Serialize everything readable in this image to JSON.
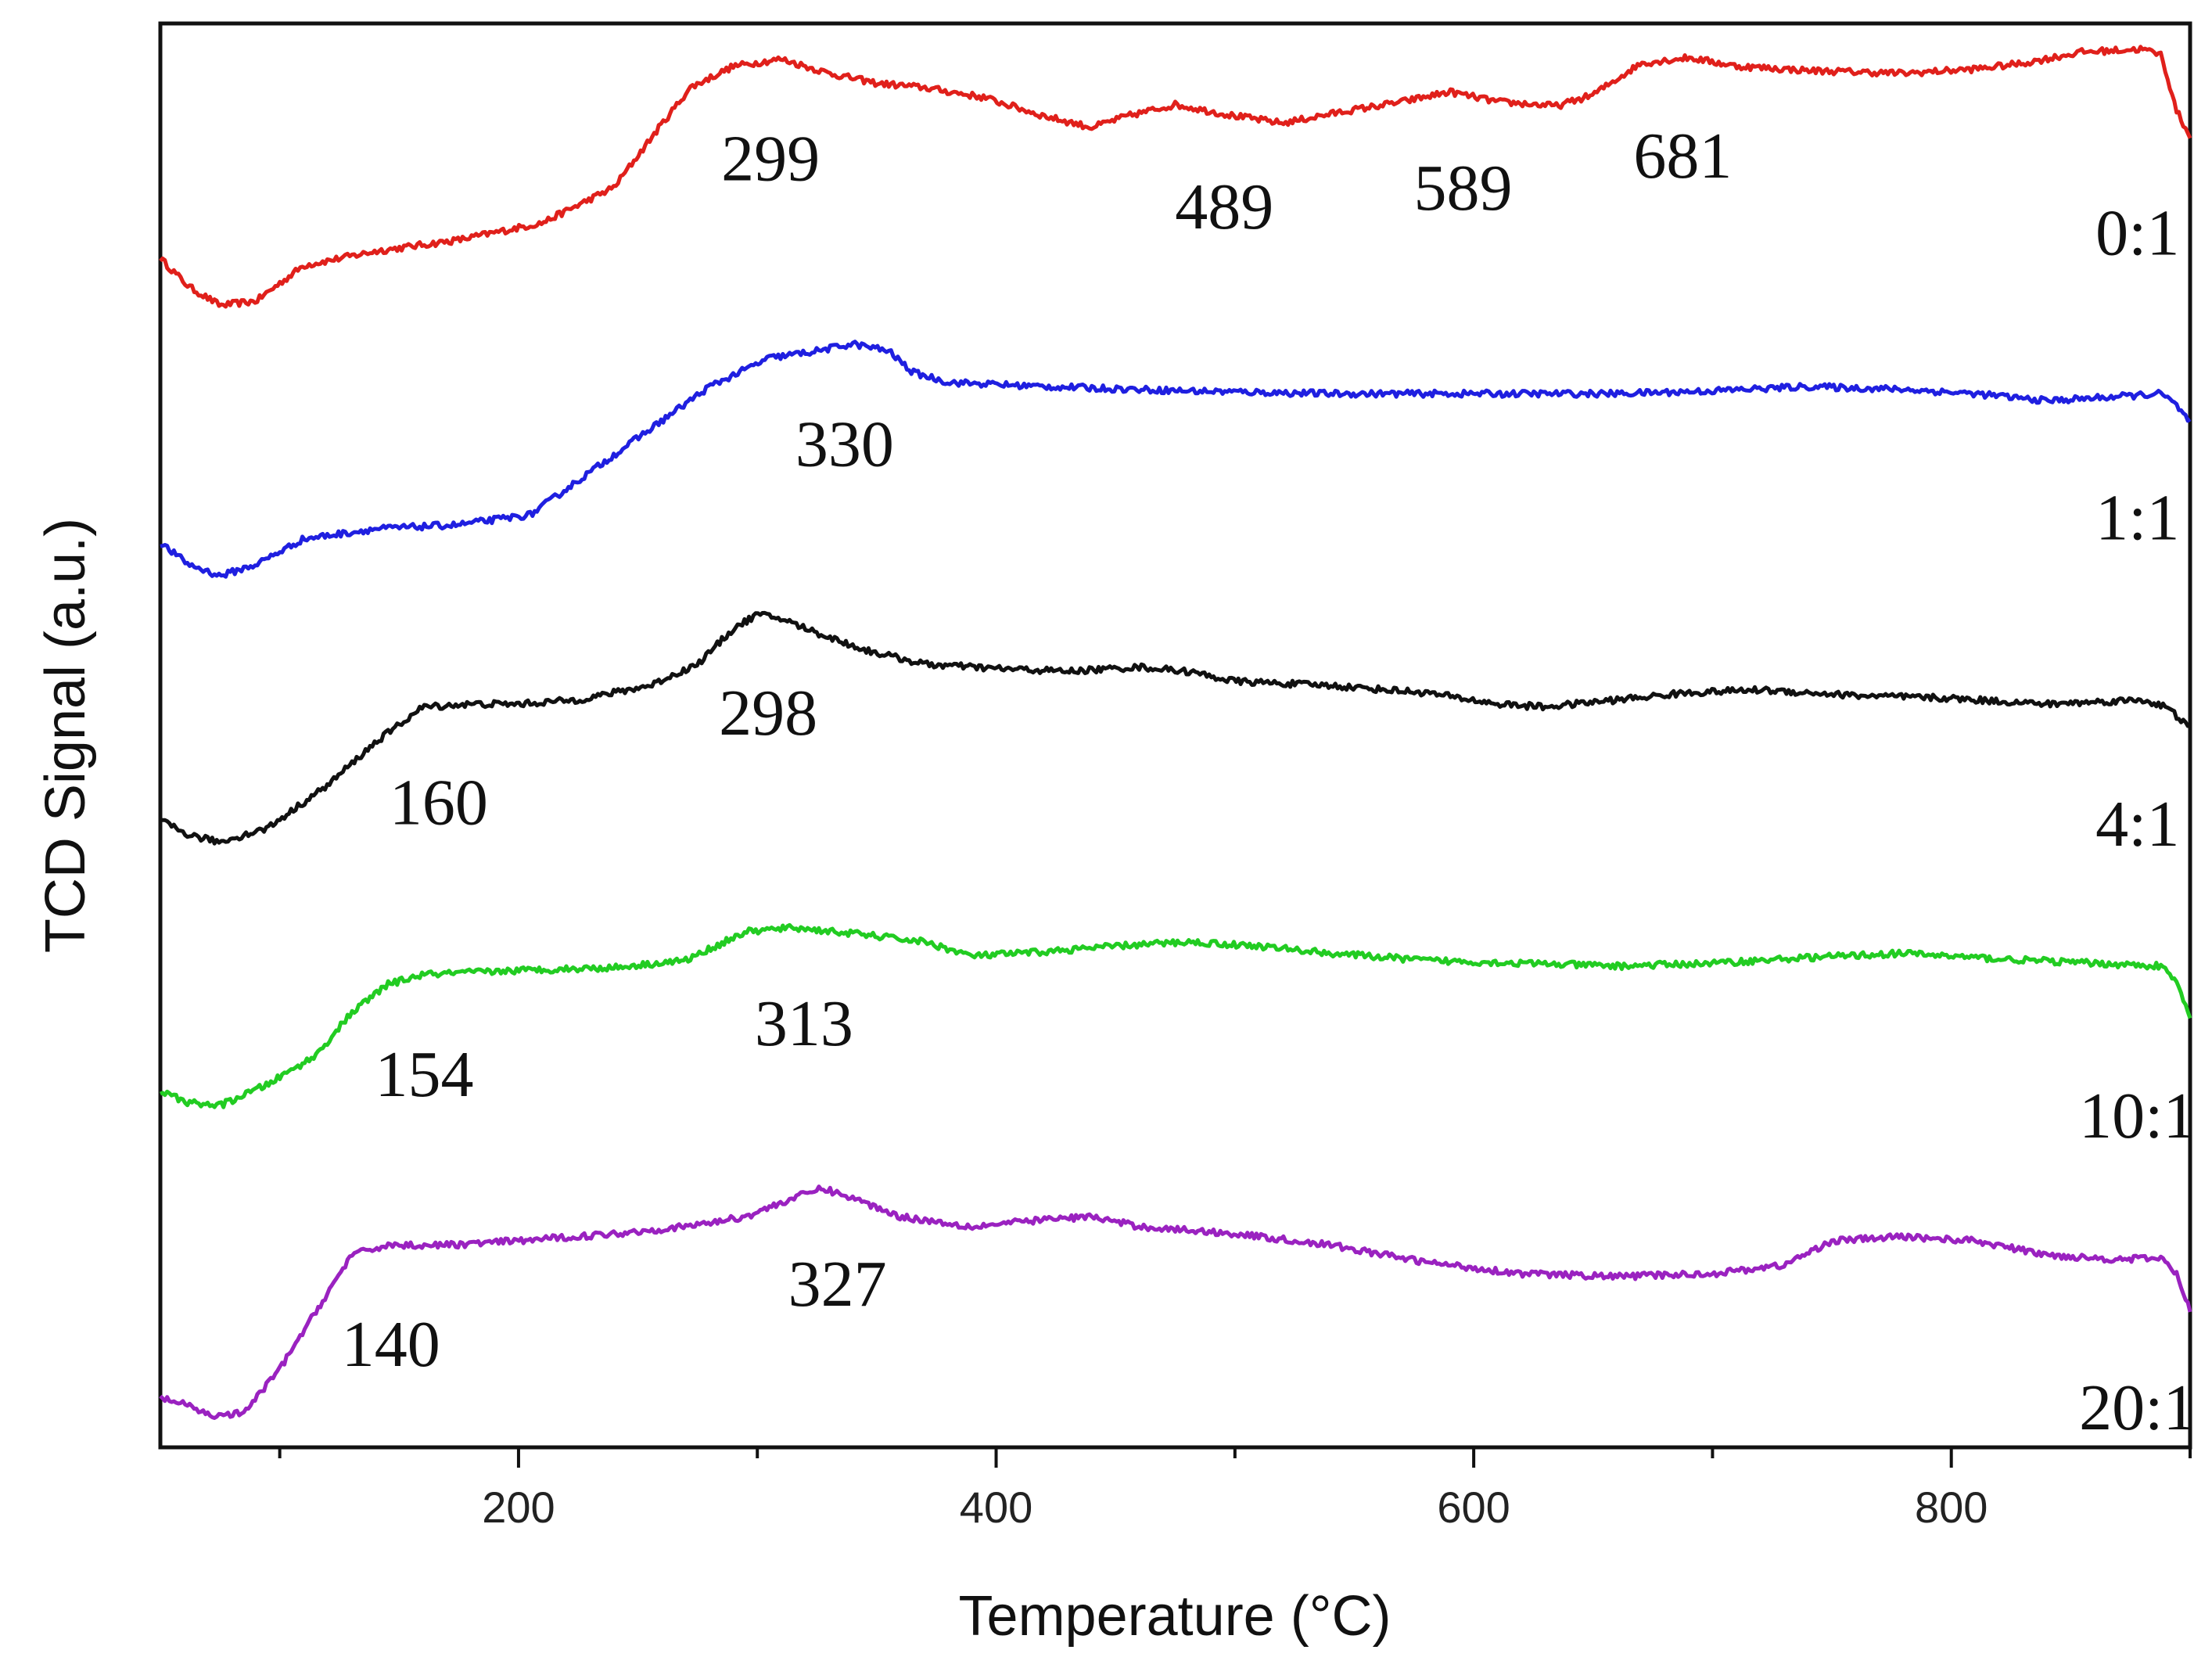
{
  "chart_data": {
    "type": "line",
    "xlabel": "Temperature (°C)",
    "ylabel": "TCD Signal (a.u.)",
    "xlim": [
      50,
      900
    ],
    "ylim": [
      0,
      10
    ],
    "x_ticks": [
      200,
      400,
      600,
      800
    ],
    "x_tick_labels": [
      "200",
      "400",
      "600",
      "800"
    ],
    "x_minor_ticks": [
      100,
      300,
      500,
      700,
      900
    ],
    "y_ticks_shown": false,
    "series": [
      {
        "name": "0:1",
        "color": "#e0201b",
        "points": [
          [
            50,
            8.35
          ],
          [
            62,
            8.15
          ],
          [
            75,
            8.02
          ],
          [
            90,
            8.05
          ],
          [
            110,
            8.3
          ],
          [
            140,
            8.4
          ],
          [
            175,
            8.48
          ],
          [
            210,
            8.6
          ],
          [
            240,
            8.85
          ],
          [
            258,
            9.25
          ],
          [
            272,
            9.55
          ],
          [
            290,
            9.7
          ],
          [
            310,
            9.75
          ],
          [
            330,
            9.65
          ],
          [
            350,
            9.58
          ],
          [
            370,
            9.55
          ],
          [
            395,
            9.48
          ],
          [
            420,
            9.35
          ],
          [
            440,
            9.27
          ],
          [
            455,
            9.35
          ],
          [
            475,
            9.43
          ],
          [
            500,
            9.35
          ],
          [
            520,
            9.3
          ],
          [
            545,
            9.38
          ],
          [
            570,
            9.45
          ],
          [
            590,
            9.52
          ],
          [
            610,
            9.45
          ],
          [
            635,
            9.42
          ],
          [
            650,
            9.5
          ],
          [
            670,
            9.72
          ],
          [
            690,
            9.76
          ],
          [
            710,
            9.7
          ],
          [
            740,
            9.67
          ],
          [
            780,
            9.65
          ],
          [
            810,
            9.68
          ],
          [
            830,
            9.72
          ],
          [
            855,
            9.8
          ],
          [
            880,
            9.82
          ],
          [
            888,
            9.78
          ],
          [
            894,
            9.4
          ],
          [
            900,
            9.2
          ]
        ],
        "label": {
          "text": "0:1"
        },
        "annotations": [
          {
            "text": "299",
            "x": 299
          },
          {
            "text": "489",
            "x": 489
          },
          {
            "text": "589",
            "x": 589
          },
          {
            "text": "681",
            "x": 681
          }
        ]
      },
      {
        "name": "1:1",
        "color": "#1f1fe0",
        "points": [
          [
            50,
            6.35
          ],
          [
            62,
            6.2
          ],
          [
            75,
            6.12
          ],
          [
            90,
            6.2
          ],
          [
            110,
            6.38
          ],
          [
            140,
            6.45
          ],
          [
            175,
            6.48
          ],
          [
            205,
            6.55
          ],
          [
            230,
            6.85
          ],
          [
            255,
            7.15
          ],
          [
            280,
            7.45
          ],
          [
            305,
            7.65
          ],
          [
            325,
            7.7
          ],
          [
            340,
            7.75
          ],
          [
            355,
            7.7
          ],
          [
            365,
            7.55
          ],
          [
            380,
            7.48
          ],
          [
            420,
            7.45
          ],
          [
            480,
            7.42
          ],
          [
            540,
            7.4
          ],
          [
            600,
            7.4
          ],
          [
            660,
            7.4
          ],
          [
            700,
            7.42
          ],
          [
            740,
            7.45
          ],
          [
            780,
            7.43
          ],
          [
            810,
            7.4
          ],
          [
            840,
            7.35
          ],
          [
            870,
            7.38
          ],
          [
            888,
            7.4
          ],
          [
            894,
            7.32
          ],
          [
            900,
            7.2
          ]
        ],
        "label": {
          "text": "1:1"
        },
        "annotations": [
          {
            "text": "330",
            "x": 330
          }
        ]
      },
      {
        "name": "4:1",
        "color": "#111111",
        "points": [
          [
            50,
            4.4
          ],
          [
            62,
            4.3
          ],
          [
            75,
            4.25
          ],
          [
            95,
            4.35
          ],
          [
            120,
            4.65
          ],
          [
            140,
            4.95
          ],
          [
            160,
            5.2
          ],
          [
            180,
            5.22
          ],
          [
            200,
            5.22
          ],
          [
            225,
            5.25
          ],
          [
            255,
            5.35
          ],
          [
            275,
            5.5
          ],
          [
            290,
            5.75
          ],
          [
            300,
            5.85
          ],
          [
            310,
            5.82
          ],
          [
            325,
            5.72
          ],
          [
            345,
            5.6
          ],
          [
            370,
            5.5
          ],
          [
            400,
            5.47
          ],
          [
            430,
            5.45
          ],
          [
            460,
            5.48
          ],
          [
            480,
            5.45
          ],
          [
            500,
            5.38
          ],
          [
            540,
            5.35
          ],
          [
            580,
            5.3
          ],
          [
            610,
            5.22
          ],
          [
            630,
            5.2
          ],
          [
            660,
            5.25
          ],
          [
            690,
            5.3
          ],
          [
            720,
            5.32
          ],
          [
            760,
            5.28
          ],
          [
            800,
            5.26
          ],
          [
            840,
            5.22
          ],
          [
            880,
            5.25
          ],
          [
            890,
            5.2
          ],
          [
            900,
            5.05
          ]
        ],
        "label": {
          "text": "4:1"
        },
        "annotations": [
          {
            "text": "160",
            "x": 160
          },
          {
            "text": "298",
            "x": 298
          }
        ]
      },
      {
        "name": "10:1",
        "color": "#22cc22",
        "points": [
          [
            50,
            2.5
          ],
          [
            62,
            2.42
          ],
          [
            75,
            2.4
          ],
          [
            95,
            2.55
          ],
          [
            115,
            2.75
          ],
          [
            130,
            3.05
          ],
          [
            145,
            3.25
          ],
          [
            160,
            3.32
          ],
          [
            200,
            3.35
          ],
          [
            240,
            3.37
          ],
          [
            270,
            3.42
          ],
          [
            295,
            3.62
          ],
          [
            315,
            3.65
          ],
          [
            345,
            3.6
          ],
          [
            370,
            3.55
          ],
          [
            390,
            3.45
          ],
          [
            420,
            3.48
          ],
          [
            450,
            3.52
          ],
          [
            480,
            3.55
          ],
          [
            510,
            3.52
          ],
          [
            540,
            3.47
          ],
          [
            580,
            3.42
          ],
          [
            620,
            3.4
          ],
          [
            660,
            3.38
          ],
          [
            700,
            3.4
          ],
          [
            740,
            3.44
          ],
          [
            780,
            3.47
          ],
          [
            820,
            3.43
          ],
          [
            860,
            3.4
          ],
          [
            888,
            3.38
          ],
          [
            895,
            3.25
          ],
          [
            900,
            3.0
          ]
        ],
        "label": {
          "text": "10:1"
        },
        "annotations": [
          {
            "text": "154",
            "x": 154
          },
          {
            "text": "313",
            "x": 313
          }
        ]
      },
      {
        "name": "20:1",
        "color": "#9a22c0",
        "points": [
          [
            50,
            0.35
          ],
          [
            60,
            0.3
          ],
          [
            72,
            0.22
          ],
          [
            85,
            0.24
          ],
          [
            100,
            0.55
          ],
          [
            115,
            0.95
          ],
          [
            130,
            1.35
          ],
          [
            145,
            1.42
          ],
          [
            170,
            1.42
          ],
          [
            200,
            1.45
          ],
          [
            240,
            1.5
          ],
          [
            270,
            1.55
          ],
          [
            295,
            1.62
          ],
          [
            315,
            1.75
          ],
          [
            327,
            1.82
          ],
          [
            340,
            1.75
          ],
          [
            360,
            1.62
          ],
          [
            390,
            1.55
          ],
          [
            420,
            1.6
          ],
          [
            440,
            1.62
          ],
          [
            460,
            1.55
          ],
          [
            500,
            1.5
          ],
          [
            540,
            1.42
          ],
          [
            580,
            1.3
          ],
          [
            620,
            1.22
          ],
          [
            660,
            1.2
          ],
          [
            700,
            1.22
          ],
          [
            730,
            1.28
          ],
          [
            750,
            1.45
          ],
          [
            780,
            1.48
          ],
          [
            810,
            1.45
          ],
          [
            840,
            1.35
          ],
          [
            870,
            1.32
          ],
          [
            888,
            1.33
          ],
          [
            895,
            1.2
          ],
          [
            900,
            0.95
          ]
        ],
        "label": {
          "text": "20:1"
        },
        "annotations": [
          {
            "text": "140",
            "x": 140
          },
          {
            "text": "327",
            "x": 327
          }
        ]
      }
    ]
  }
}
